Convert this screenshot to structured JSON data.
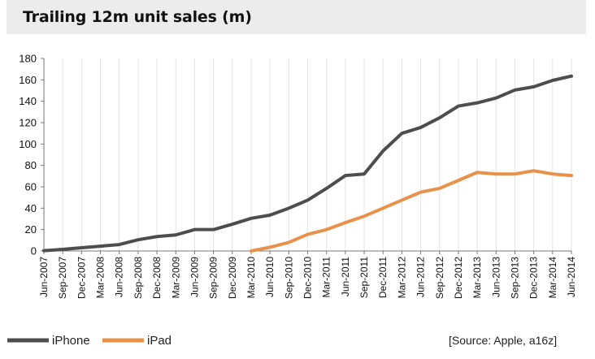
{
  "chart_data": {
    "type": "line",
    "title": "Trailing 12m unit sales (m)",
    "categories": [
      "Jun-2007",
      "Sep-2007",
      "Dec-2007",
      "Mar-2008",
      "Jun-2008",
      "Sep-2008",
      "Dec-2008",
      "Mar-2009",
      "Jun-2009",
      "Sep-2009",
      "Dec-2009",
      "Mar-2010",
      "Jun-2010",
      "Sep-2010",
      "Dec-2010",
      "Mar-2011",
      "Jun-2011",
      "Sep-2011",
      "Dec-2011",
      "Mar-2012",
      "Jun-2012",
      "Sep-2012",
      "Dec-2012",
      "Mar-2013",
      "Jun-2013",
      "Sep-2013",
      "Dec-2013",
      "Mar-2014",
      "Jun-2014"
    ],
    "series": [
      {
        "name": "iPhone",
        "color": "#4d4d4d",
        "values": [
          0.3,
          1.5,
          3.0,
          4.5,
          6.0,
          10.5,
          13.5,
          15.0,
          20.0,
          20.0,
          25.0,
          30.5,
          33.5,
          40.0,
          47.5,
          58.5,
          70.5,
          72.0,
          93.5,
          110.0,
          115.5,
          124.5,
          135.5,
          138.5,
          143.0,
          150.5,
          153.5,
          159.5,
          163.5
        ]
      },
      {
        "name": "iPad",
        "color": "#e8914a",
        "values": [
          null,
          null,
          null,
          null,
          null,
          null,
          null,
          null,
          null,
          null,
          null,
          0,
          3.5,
          8.0,
          15.5,
          20.0,
          26.5,
          32.5,
          40.0,
          47.5,
          55.0,
          58.5,
          66.0,
          73.5,
          72.0,
          72.0,
          75.0,
          72.0,
          70.5
        ]
      }
    ],
    "ylim": [
      0,
      180
    ],
    "yticks": [
      "0",
      "20",
      "40",
      "60",
      "80",
      "100",
      "120",
      "140",
      "160",
      "180"
    ],
    "xlabel": "",
    "ylabel": "",
    "grid": "vertical",
    "legend_position": "bottom-left"
  },
  "source_note": "[Source: Apple, a16z]"
}
